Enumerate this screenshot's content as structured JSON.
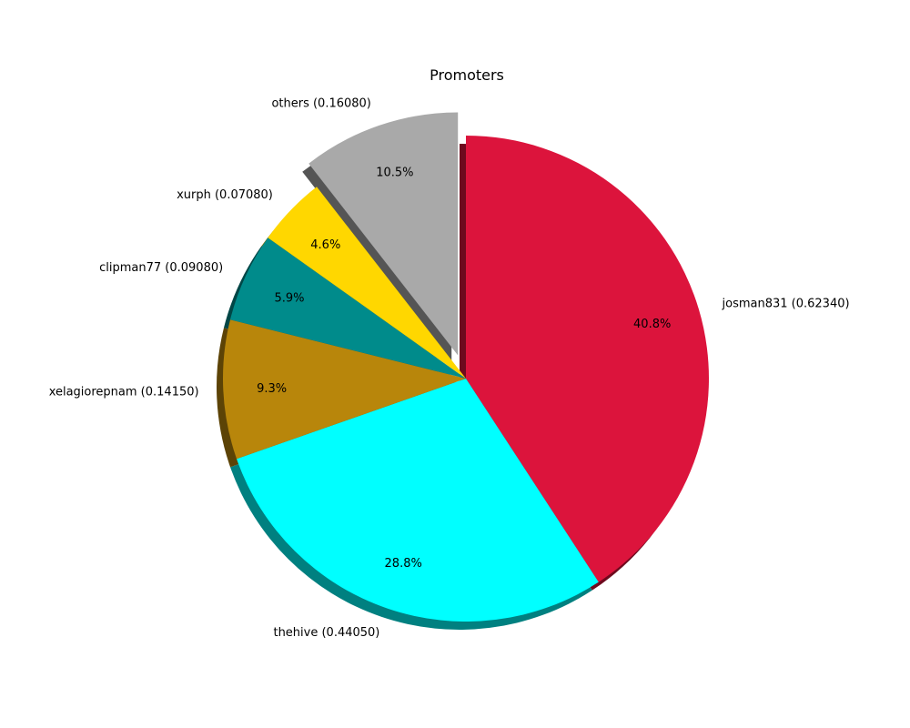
{
  "chart_data": {
    "type": "pie",
    "title": "Promoters",
    "slices": [
      {
        "name": "josman831",
        "value": 0.6234,
        "label": "josman831 (0.62340)",
        "pct": "40.8%",
        "color": "#DC143C",
        "exploded": false
      },
      {
        "name": "thehive",
        "value": 0.4405,
        "label": "thehive (0.44050)",
        "pct": "28.8%",
        "color": "#00FFFF",
        "exploded": false
      },
      {
        "name": "xelagiorepnam",
        "value": 0.1415,
        "label": "xelagiorepnam (0.14150)",
        "pct": "9.3%",
        "color": "#B8860B",
        "exploded": false
      },
      {
        "name": "clipman77",
        "value": 0.0908,
        "label": "clipman77 (0.09080)",
        "pct": "5.9%",
        "color": "#008B8B",
        "exploded": false
      },
      {
        "name": "xurph",
        "value": 0.0708,
        "label": "xurph (0.07080)",
        "pct": "4.6%",
        "color": "#FFD700",
        "exploded": false
      },
      {
        "name": "others",
        "value": 0.1608,
        "label": "others (0.16080)",
        "pct": "10.5%",
        "color": "#A9A9A9",
        "exploded": true
      }
    ],
    "start": "top",
    "direction": "clockwise",
    "shadow": true
  }
}
